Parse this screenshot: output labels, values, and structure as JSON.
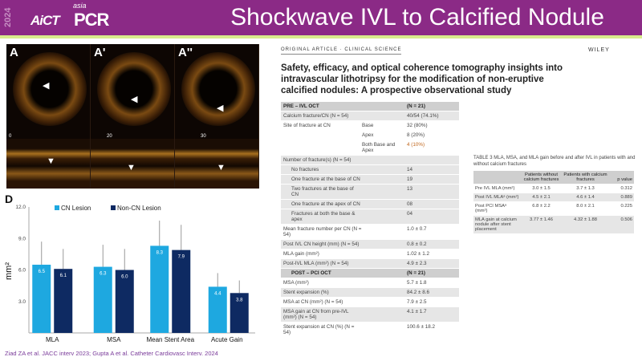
{
  "header": {
    "year": "2024",
    "logo_left": "AiCT",
    "logo_right_small": "asia",
    "logo_right": "PCR",
    "title": "Shockwave IVL to Calcified Nodule",
    "bg_color": "#8b2a86"
  },
  "oct": {
    "panels": [
      {
        "label": "A",
        "tick": "0"
      },
      {
        "label": "A'",
        "tick": "20"
      },
      {
        "label": "A''",
        "tick": "30"
      }
    ]
  },
  "chart_data": {
    "type": "bar",
    "panel_label": "D",
    "ylabel": "mm²",
    "ylim": [
      0,
      12
    ],
    "yticks": [
      "3.0",
      "6.0",
      "9.0",
      "12.0"
    ],
    "legend_position": "top",
    "categories": [
      "MLA",
      "MSA",
      "Mean Stent Area",
      "Acute Gain"
    ],
    "series": [
      {
        "name": "CN Lesion",
        "color": "#1ea8e0",
        "values": [
          6.5,
          6.3,
          8.3,
          4.4
        ],
        "labels": [
          "6.5",
          "6.3",
          "8.3",
          "4.4"
        ],
        "error": [
          2.2,
          2.1,
          2.4,
          1.3
        ]
      },
      {
        "name": "Non-CN Lesion",
        "color": "#0e2a62",
        "values": [
          6.1,
          6.0,
          7.9,
          3.8
        ],
        "labels": [
          "6.1",
          "6.0",
          "7.9",
          "3.8"
        ],
        "error": [
          1.9,
          2.0,
          2.4,
          1.2
        ]
      }
    ]
  },
  "citation": "Ziad ZA et al. JACC interv 2023; Gupta A et al. Catheter Cardiovasc Interv. 2024",
  "article": {
    "section": "ORIGINAL ARTICLE · CLINICAL SCIENCE",
    "publisher": "WILEY",
    "title": "Safety, efficacy, and optical coherence tomography insights into intravascular lithotripsy for the modification of non-eruptive calcified nodules: A prospective observational study",
    "table1": {
      "rows": [
        {
          "a": "PRE – IVL OCT",
          "b": "",
          "c": "(N = 21)"
        },
        {
          "a": "Calcium fracture/CN (N = 54)",
          "b": "",
          "c": "40/54 (74.1%)"
        },
        {
          "a": "Site of fracture at CN",
          "b": "Base",
          "c": "32 (80%)"
        },
        {
          "a": "",
          "b": "Apex",
          "c": "8 (20%)"
        },
        {
          "a": "",
          "b": "Both Base and Apex",
          "c": "4 (10%)"
        },
        {
          "a": "Number of fracture(s) (N = 54)",
          "b": "",
          "c": ""
        },
        {
          "a": "No fractures",
          "b": "",
          "c": "14"
        },
        {
          "a": "One fracture at the base of CN",
          "b": "",
          "c": "19"
        },
        {
          "a": "Two fractures at the base of CN",
          "b": "",
          "c": "13"
        },
        {
          "a": "One fracture at the apex of CN",
          "b": "",
          "c": "08"
        },
        {
          "a": "Fractures at both the base & apex",
          "b": "",
          "c": "04"
        },
        {
          "a": "Mean fracture number per CN (N = 54)",
          "b": "",
          "c": "1.0 ± 0.7"
        },
        {
          "a": "Post IVL CN height (mm) (N = 54)",
          "b": "",
          "c": "0.8 ± 0.2"
        },
        {
          "a": "MLA gain (mm²)",
          "b": "",
          "c": "1.02 ± 1.2"
        },
        {
          "a": "Post-IVL MLA (mm²) (N = 54)",
          "b": "",
          "c": "4.9 ± 2.3"
        },
        {
          "a": "POST – PCI OCT",
          "b": "",
          "c": "(N = 21)"
        },
        {
          "a": "MSA (mm²)",
          "b": "",
          "c": "5.7 ± 1.8"
        },
        {
          "a": "Stent expansion (%)",
          "b": "",
          "c": "84.2 ± 8.6"
        },
        {
          "a": "MSA at CN (mm²) (N = 54)",
          "b": "",
          "c": "7.9 ± 2.5"
        },
        {
          "a": "MSA gain at CN from pre-IVL (mm²) (N = 54)",
          "b": "",
          "c": "4.1 ± 1.7"
        },
        {
          "a": "Stent expansion at CN (%) (N = 54)",
          "b": "",
          "c": "100.6 ± 18.2"
        }
      ]
    },
    "table3": {
      "caption": "TABLE 3   MLA, MSA, and MLA gain before and after IVL in patients with and without calcium fractures",
      "headers": [
        "",
        "Patients without calcium fractures",
        "Patients with calcium fractures",
        "p value"
      ],
      "rows": [
        [
          "Pre IVL MLA (mm²)",
          "3.0 ± 1.5",
          "3.7 ± 1.3",
          "0.312"
        ],
        [
          "Post IVL MLAᵃ (mm²)",
          "4.5 ± 2.1",
          "4.6 ± 1.4",
          "0.889"
        ],
        [
          "Post PCI MSAᵃ (mm²)",
          "6.8 ± 2.2",
          "8.0 ± 2.1",
          "0.225"
        ],
        [
          "MLA gain at calcium nodule after stent placement",
          "3.77 ± 1.46",
          "4.32 ± 1.88",
          "0.506"
        ]
      ]
    }
  }
}
